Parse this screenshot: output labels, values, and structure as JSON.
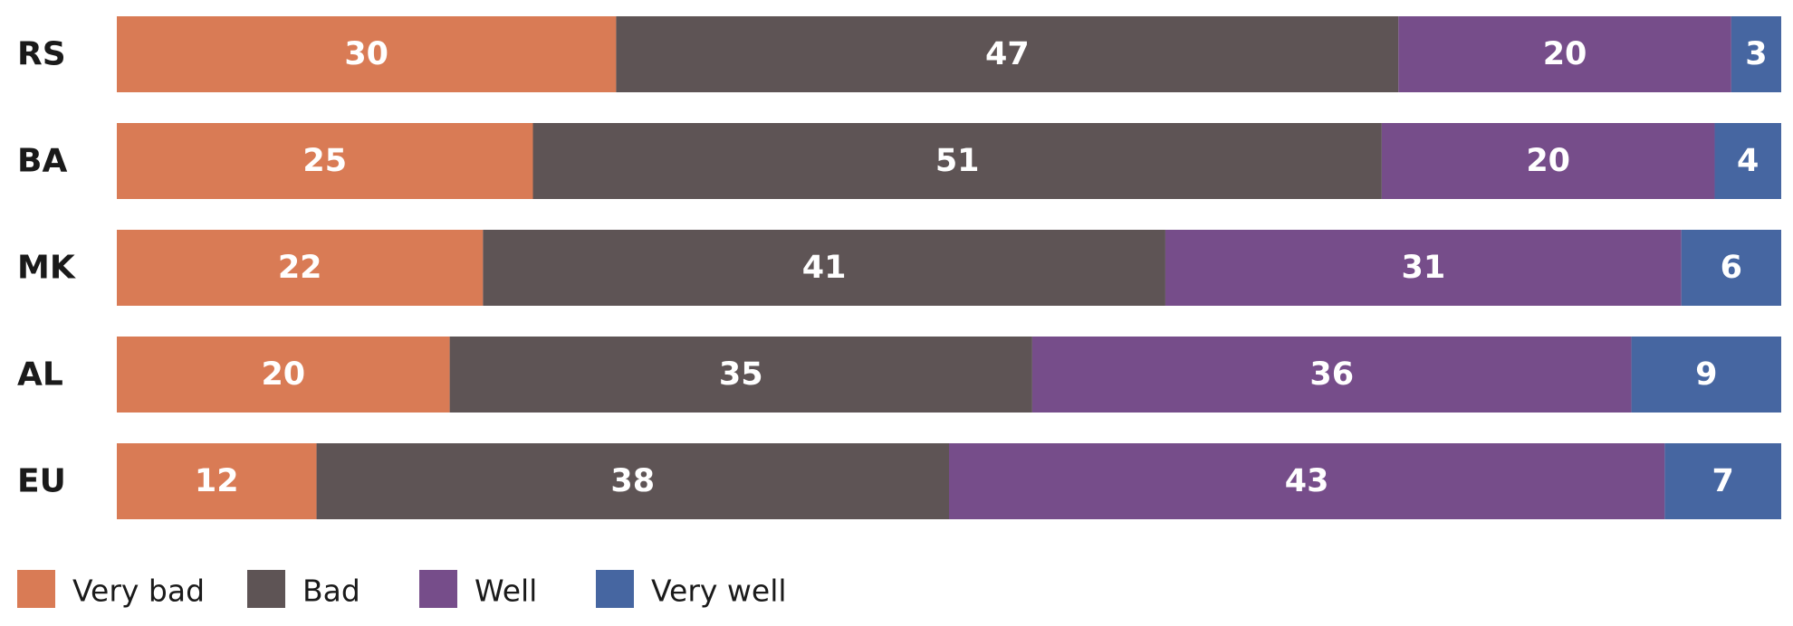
{
  "chart_data": {
    "type": "bar",
    "orientation": "horizontal",
    "stacked": true,
    "categories": [
      "RS",
      "BA",
      "MK",
      "AL",
      "EU"
    ],
    "series": [
      {
        "name": "Very bad",
        "color": "#D97B55",
        "values": [
          30,
          25,
          22,
          20,
          12
        ]
      },
      {
        "name": "Bad",
        "color": "#5E5455",
        "values": [
          47,
          51,
          41,
          35,
          38
        ]
      },
      {
        "name": "Well",
        "color": "#764D8A",
        "values": [
          20,
          20,
          31,
          36,
          43
        ]
      },
      {
        "name": "Very well",
        "color": "#4666A1",
        "values": [
          3,
          4,
          6,
          9,
          7
        ]
      }
    ],
    "xlim": [
      0,
      100
    ],
    "grid": false,
    "legend_position": "bottom-left"
  }
}
